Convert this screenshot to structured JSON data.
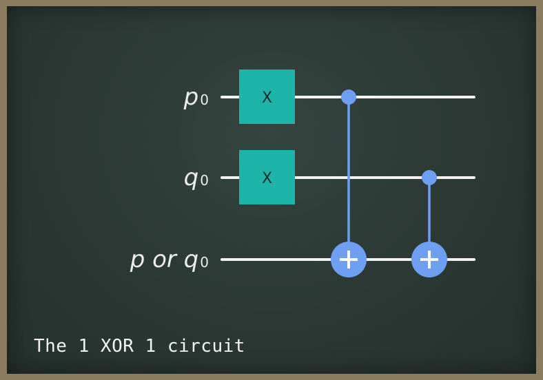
{
  "wires": [
    {
      "name": "p",
      "sub": "0"
    },
    {
      "name": "q",
      "sub": "0"
    },
    {
      "name": "p or q",
      "sub": "0"
    }
  ],
  "gates": [
    {
      "label": "X"
    },
    {
      "label": "X"
    }
  ],
  "caption": "The 1 XOR 1 circuit",
  "colors": {
    "gate": "#1db4a9",
    "control": "#6f9ff0",
    "wire": "#f2f2f2",
    "board": "#2b3834"
  }
}
